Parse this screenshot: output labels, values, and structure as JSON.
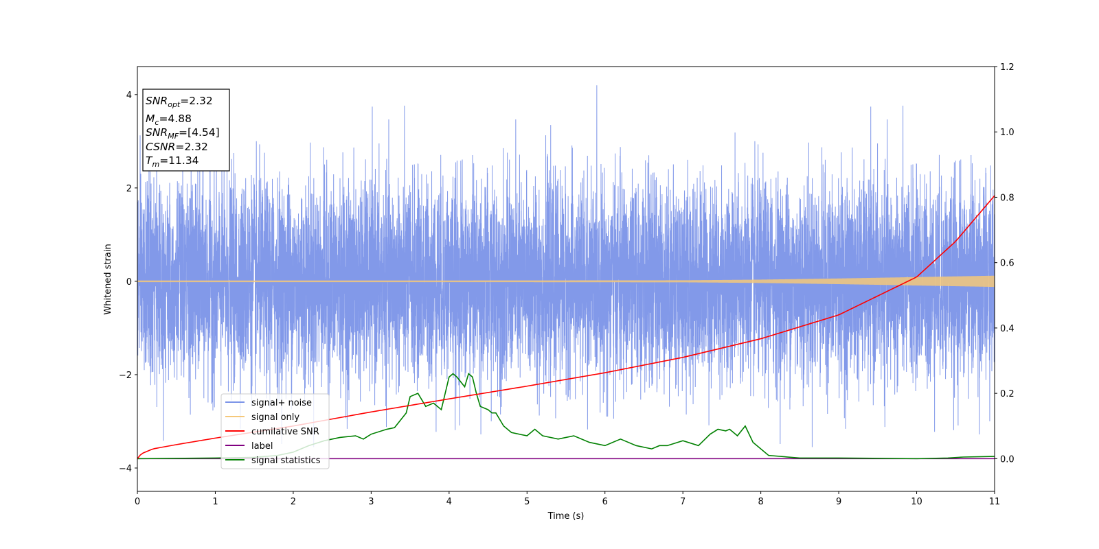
{
  "chart_data": {
    "type": "line",
    "xlabel": "Time (s)",
    "ylabel": "Whitened strain",
    "xlim": [
      0,
      11
    ],
    "ylim": [
      -4.5,
      4.6
    ],
    "y2lim": [
      -0.1,
      1.2
    ],
    "xticks": [
      0,
      1,
      2,
      3,
      4,
      5,
      6,
      7,
      8,
      9,
      10,
      11
    ],
    "yticks": [
      -4,
      -2,
      0,
      2,
      4
    ],
    "y2ticks": [
      "0.0",
      "0.2",
      "0.4",
      "0.6",
      "0.8",
      "1.0",
      "1.2"
    ],
    "grid": false,
    "legend_position": "lower-left",
    "annotation": {
      "snr_opt": {
        "main": "SNR",
        "sub": "opt",
        "value": "=2.32"
      },
      "mc": {
        "main": "M",
        "sub": "c",
        "value": "=4.88"
      },
      "snr_mf": {
        "main": "SNR",
        "sub": "MF",
        "value": "=[4.54]"
      },
      "csnr": {
        "main": "CSNR",
        "value": "=2.32"
      },
      "tm": {
        "main": "T",
        "sub": "m",
        "value": "=11.34"
      }
    },
    "series": [
      {
        "name": "signal+ noise",
        "axis": "left",
        "color": "#7b94e8",
        "description_values": "whitened noise, roughly std 1.05, spikes up to ~4.2 and down to ~-3.9",
        "amplitude_std": 1.05
      },
      {
        "name": "signal only",
        "axis": "left",
        "color": "#f5c87a",
        "envelope": {
          "t": [
            0,
            4,
            7,
            8,
            9,
            10,
            11
          ],
          "amp": [
            0.015,
            0.015,
            0.02,
            0.035,
            0.06,
            0.09,
            0.12
          ]
        }
      },
      {
        "name": "cumilative SNR",
        "axis": "right",
        "color": "#ff0000",
        "x": [
          0,
          0.05,
          0.2,
          0.5,
          1,
          2,
          3,
          4,
          5,
          6,
          7,
          8,
          9,
          10,
          10.5,
          11
        ],
        "y": [
          0.0,
          0.015,
          0.03,
          0.043,
          0.063,
          0.1,
          0.143,
          0.183,
          0.222,
          0.263,
          0.31,
          0.367,
          0.44,
          0.556,
          0.665,
          0.805
        ]
      },
      {
        "name": "label",
        "axis": "right",
        "color": "#800080",
        "x": [
          0,
          11
        ],
        "y": [
          0.0,
          0.0
        ]
      },
      {
        "name": "signal statistics",
        "axis": "right",
        "color": "#008000",
        "x": [
          0,
          1,
          1.5,
          1.8,
          2.0,
          2.2,
          2.4,
          2.6,
          2.8,
          2.9,
          3.0,
          3.2,
          3.3,
          3.45,
          3.5,
          3.6,
          3.7,
          3.8,
          3.9,
          4.0,
          4.05,
          4.1,
          4.2,
          4.25,
          4.3,
          4.35,
          4.4,
          4.5,
          4.55,
          4.6,
          4.7,
          4.8,
          5.0,
          5.1,
          5.2,
          5.4,
          5.6,
          5.8,
          6.0,
          6.2,
          6.4,
          6.6,
          6.7,
          6.8,
          7.0,
          7.2,
          7.35,
          7.45,
          7.55,
          7.6,
          7.7,
          7.8,
          7.9,
          8.1,
          8.5,
          9.0,
          10.0,
          10.4,
          10.6,
          11.0
        ],
        "y": [
          0.0,
          0.002,
          0.004,
          0.01,
          0.02,
          0.04,
          0.055,
          0.065,
          0.07,
          0.06,
          0.075,
          0.09,
          0.095,
          0.14,
          0.19,
          0.2,
          0.16,
          0.17,
          0.15,
          0.25,
          0.26,
          0.25,
          0.22,
          0.26,
          0.25,
          0.2,
          0.16,
          0.15,
          0.14,
          0.14,
          0.1,
          0.08,
          0.07,
          0.09,
          0.07,
          0.06,
          0.07,
          0.05,
          0.04,
          0.06,
          0.04,
          0.03,
          0.04,
          0.04,
          0.055,
          0.04,
          0.075,
          0.09,
          0.085,
          0.09,
          0.07,
          0.1,
          0.05,
          0.01,
          0.002,
          0.002,
          0.0,
          0.002,
          0.005,
          0.007
        ]
      }
    ]
  }
}
